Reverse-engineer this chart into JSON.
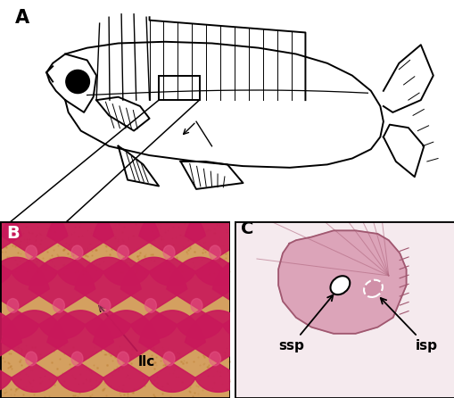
{
  "panel_A_label": "A",
  "panel_B_label": "B",
  "panel_C_label": "C",
  "label_llc": "llc",
  "label_ssp": "ssp",
  "label_isp": "isp",
  "bg_color": "#ffffff",
  "panel_B_bg": "#d4a060",
  "panel_B_scale_dark": "#c8185a",
  "panel_B_scale_light": "#e85888",
  "panel_C_bg": "#f0e0e8",
  "panel_C_scale_color": "#d090a8",
  "panel_C_scale_dark": "#c0607a",
  "label_fontsize": 13,
  "annotation_fontsize": 10,
  "figsize": [
    5.1,
    4.46
  ],
  "dpi": 100
}
